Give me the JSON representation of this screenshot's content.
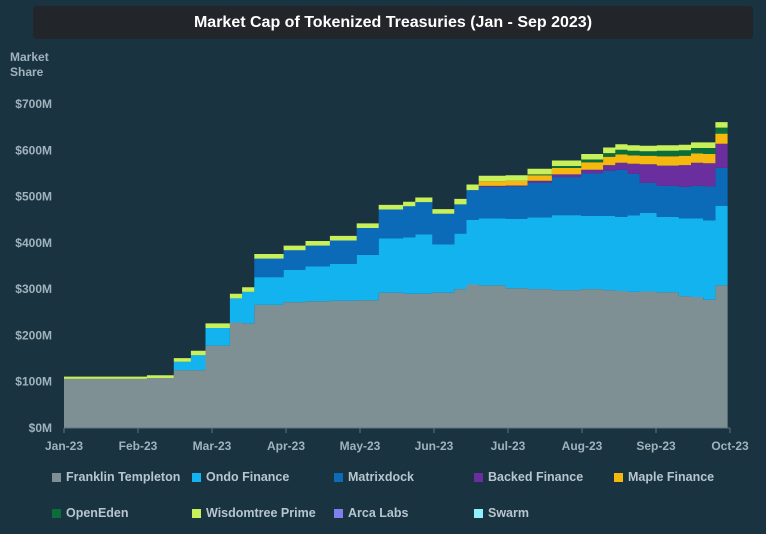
{
  "chart_data": {
    "type": "area",
    "stacked": true,
    "title": "Market Cap of Tokenized Treasuries (Jan - Sep 2023)",
    "ylabel": "Market Share",
    "xlabel": "",
    "ylim": [
      0,
      700
    ],
    "y_ticks": [
      "$0M",
      "$100M",
      "$200M",
      "$300M",
      "$400M",
      "$500M",
      "$600M",
      "$700M"
    ],
    "x_ticks": [
      "Jan-23",
      "Feb-23",
      "Mar-23",
      "Apr-23",
      "May-23",
      "Jun-23",
      "Jul-23",
      "Aug-23",
      "Sep-23",
      "Oct-23"
    ],
    "grid": false,
    "legend_position": "bottom",
    "x": [
      "2023-01-01",
      "2023-01-15",
      "2023-02-01",
      "2023-02-04",
      "2023-02-15",
      "2023-02-22",
      "2023-02-28",
      "2023-03-10",
      "2023-03-15",
      "2023-03-20",
      "2023-04-01",
      "2023-04-10",
      "2023-04-20",
      "2023-05-01",
      "2023-05-10",
      "2023-05-20",
      "2023-05-25",
      "2023-06-01",
      "2023-06-10",
      "2023-06-15",
      "2023-06-20",
      "2023-07-01",
      "2023-07-10",
      "2023-07-20",
      "2023-08-01",
      "2023-08-10",
      "2023-08-15",
      "2023-08-20",
      "2023-08-25",
      "2023-09-01",
      "2023-09-10",
      "2023-09-15",
      "2023-09-20",
      "2023-09-25",
      "2023-09-30"
    ],
    "series": [
      {
        "name": "Franklin Templeton",
        "color": "#7f9095",
        "values": [
          106,
          106,
          106,
          108,
          125,
          125,
          178,
          228,
          226,
          266,
          272,
          274,
          275,
          276,
          292,
          290,
          290,
          292,
          300,
          310,
          308,
          302,
          300,
          298,
          300,
          298,
          296,
          294,
          295,
          293,
          285,
          283,
          277,
          308,
          308
        ]
      },
      {
        "name": "Ondo Finance",
        "color": "#12b3ee",
        "values": [
          0,
          0,
          0,
          0,
          18,
          32,
          38,
          52,
          68,
          60,
          70,
          75,
          80,
          98,
          118,
          122,
          128,
          105,
          120,
          140,
          145,
          150,
          155,
          162,
          158,
          160,
          160,
          165,
          170,
          163,
          168,
          170,
          172,
          172,
          180
        ]
      },
      {
        "name": "Matrixdock",
        "color": "#0b6bb9",
        "values": [
          0,
          0,
          0,
          0,
          0,
          0,
          0,
          0,
          0,
          40,
          42,
          45,
          50,
          58,
          62,
          67,
          70,
          66,
          63,
          64,
          68,
          70,
          75,
          82,
          92,
          98,
          102,
          90,
          65,
          67,
          68,
          70,
          73,
          82,
          80
        ]
      },
      {
        "name": "Backed Finance",
        "color": "#6a2e9e",
        "values": [
          0,
          0,
          0,
          0,
          0,
          0,
          0,
          0,
          0,
          0,
          0,
          0,
          0,
          0,
          0,
          0,
          0,
          0,
          0,
          0,
          2,
          2,
          4,
          6,
          8,
          12,
          15,
          22,
          40,
          44,
          47,
          50,
          50,
          52,
          50
        ]
      },
      {
        "name": "Maple Finance",
        "color": "#f5b80f",
        "values": [
          0,
          0,
          0,
          0,
          0,
          0,
          0,
          0,
          0,
          0,
          0,
          0,
          0,
          0,
          0,
          0,
          0,
          0,
          0,
          0,
          10,
          10,
          12,
          14,
          16,
          18,
          18,
          18,
          18,
          20,
          20,
          20,
          20,
          22,
          22
        ]
      },
      {
        "name": "OpenEden",
        "color": "#0b6e3a",
        "values": [
          0,
          0,
          0,
          0,
          0,
          0,
          0,
          0,
          0,
          0,
          0,
          0,
          0,
          0,
          0,
          0,
          0,
          0,
          0,
          0,
          0,
          0,
          2,
          4,
          6,
          8,
          10,
          10,
          10,
          12,
          12,
          12,
          13,
          13,
          14
        ]
      },
      {
        "name": "Wisdomtree Prime",
        "color": "#c7f05a",
        "values": [
          5,
          5,
          5,
          6,
          8,
          10,
          10,
          10,
          10,
          10,
          10,
          10,
          10,
          10,
          10,
          10,
          10,
          10,
          12,
          12,
          12,
          12,
          12,
          12,
          12,
          12,
          12,
          12,
          12,
          12,
          12,
          12,
          12,
          12,
          12
        ]
      },
      {
        "name": "Arca Labs",
        "color": "#7f7fef",
        "values": [
          0,
          0,
          0,
          0,
          0,
          0,
          0,
          0,
          0,
          0,
          0,
          0,
          0,
          0,
          0,
          0,
          0,
          0,
          0,
          0,
          0,
          0,
          0,
          0,
          0,
          0,
          0,
          0,
          0,
          0,
          0,
          0,
          0,
          0,
          0
        ]
      },
      {
        "name": "Swarm",
        "color": "#8ff1fb",
        "values": [
          0,
          0,
          0,
          0,
          0,
          0,
          0,
          0,
          0,
          0,
          0,
          0,
          0,
          0,
          0,
          0,
          0,
          0,
          0,
          0,
          0,
          0,
          0,
          0,
          0,
          0,
          0,
          0,
          0,
          0,
          0,
          0,
          0,
          0,
          0
        ]
      }
    ]
  }
}
